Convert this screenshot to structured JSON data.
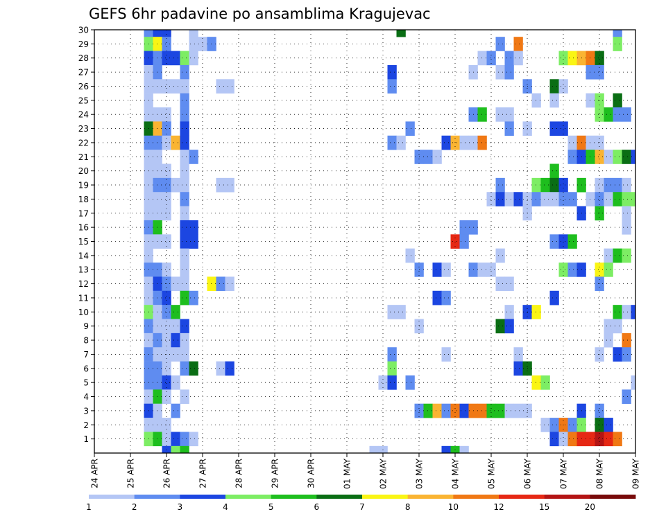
{
  "chart_data": {
    "type": "heatmap",
    "title": "GEFS 6hr padavine po ansamblima Kragujevac",
    "xlabel": "",
    "ylabel": "",
    "x_tick_labels": [
      "24 APR",
      "25 APR",
      "26 APR",
      "27 APR",
      "28 APR",
      "29 APR",
      "30 APR",
      "01 MAY",
      "02 MAY",
      "03 MAY",
      "04 MAY",
      "05 MAY",
      "06 MAY",
      "07 MAY",
      "08 MAY",
      "09 MAY"
    ],
    "y_tick_labels": [
      "1",
      "2",
      "3",
      "4",
      "5",
      "6",
      "7",
      "8",
      "9",
      "10",
      "11",
      "12",
      "13",
      "14",
      "15",
      "16",
      "17",
      "18",
      "19",
      "20",
      "21",
      "22",
      "23",
      "24",
      "25",
      "26",
      "27",
      "28",
      "29",
      "30"
    ],
    "y_members": [
      0,
      30
    ],
    "time_steps": 60,
    "grid": "dotted",
    "colorbar": {
      "levels": [
        "1",
        "2",
        "3",
        "4",
        "5",
        "6",
        "7",
        "8",
        "10",
        "12",
        "15",
        "20"
      ],
      "colors": [
        "#B4C6F5",
        "#5F8CF0",
        "#1C46E1",
        "#7DED64",
        "#1EBE1E",
        "#0A6E14",
        "#FAF514",
        "#FAB432",
        "#F07814",
        "#E62814",
        "#B41414",
        "#780A0A"
      ]
    },
    "cells": [
      [
        6,
        30,
        2
      ],
      [
        7,
        30,
        3
      ],
      [
        8,
        30,
        3
      ],
      [
        11,
        30,
        1
      ],
      [
        34,
        30,
        6
      ],
      [
        58,
        30,
        2
      ],
      [
        6,
        29,
        4
      ],
      [
        7,
        29,
        7
      ],
      [
        8,
        29,
        2
      ],
      [
        11,
        29,
        1
      ],
      [
        12,
        29,
        1
      ],
      [
        13,
        29,
        2
      ],
      [
        45,
        29,
        2
      ],
      [
        47,
        29,
        9
      ],
      [
        58,
        29,
        4
      ],
      [
        6,
        28,
        3
      ],
      [
        7,
        28,
        2
      ],
      [
        8,
        28,
        3
      ],
      [
        9,
        28,
        3
      ],
      [
        10,
        28,
        4
      ],
      [
        11,
        28,
        1
      ],
      [
        43,
        28,
        1
      ],
      [
        44,
        28,
        2
      ],
      [
        46,
        28,
        2
      ],
      [
        47,
        28,
        1
      ],
      [
        52,
        28,
        4
      ],
      [
        53,
        28,
        7
      ],
      [
        54,
        28,
        8
      ],
      [
        55,
        28,
        9
      ],
      [
        56,
        28,
        6
      ],
      [
        6,
        27,
        1
      ],
      [
        7,
        27,
        2
      ],
      [
        10,
        27,
        2
      ],
      [
        33,
        27,
        3
      ],
      [
        42,
        27,
        1
      ],
      [
        45,
        27,
        1
      ],
      [
        46,
        27,
        2
      ],
      [
        55,
        27,
        2
      ],
      [
        56,
        27,
        2
      ],
      [
        6,
        26,
        1
      ],
      [
        7,
        26,
        1
      ],
      [
        8,
        26,
        1
      ],
      [
        9,
        26,
        1
      ],
      [
        10,
        26,
        1
      ],
      [
        14,
        26,
        1
      ],
      [
        15,
        26,
        1
      ],
      [
        33,
        26,
        2
      ],
      [
        48,
        26,
        2
      ],
      [
        51,
        26,
        6
      ],
      [
        52,
        26,
        1
      ],
      [
        6,
        25,
        1
      ],
      [
        10,
        25,
        2
      ],
      [
        49,
        25,
        1
      ],
      [
        51,
        25,
        1
      ],
      [
        55,
        25,
        1
      ],
      [
        56,
        25,
        4
      ],
      [
        58,
        25,
        6
      ],
      [
        6,
        24,
        1
      ],
      [
        7,
        24,
        1
      ],
      [
        8,
        24,
        1
      ],
      [
        10,
        24,
        2
      ],
      [
        42,
        24,
        2
      ],
      [
        43,
        24,
        5
      ],
      [
        45,
        24,
        1
      ],
      [
        46,
        24,
        1
      ],
      [
        56,
        24,
        4
      ],
      [
        57,
        24,
        5
      ],
      [
        58,
        24,
        2
      ],
      [
        59,
        24,
        2
      ],
      [
        6,
        23,
        6
      ],
      [
        7,
        23,
        8
      ],
      [
        8,
        23,
        2
      ],
      [
        10,
        23,
        3
      ],
      [
        35,
        23,
        2
      ],
      [
        46,
        23,
        2
      ],
      [
        48,
        23,
        1
      ],
      [
        51,
        23,
        3
      ],
      [
        52,
        23,
        3
      ],
      [
        6,
        22,
        2
      ],
      [
        7,
        22,
        2
      ],
      [
        8,
        22,
        1
      ],
      [
        9,
        22,
        8
      ],
      [
        10,
        22,
        3
      ],
      [
        33,
        22,
        2
      ],
      [
        34,
        22,
        1
      ],
      [
        39,
        22,
        3
      ],
      [
        40,
        22,
        8
      ],
      [
        41,
        22,
        1
      ],
      [
        42,
        22,
        1
      ],
      [
        43,
        22,
        9
      ],
      [
        53,
        22,
        1
      ],
      [
        54,
        22,
        9
      ],
      [
        55,
        22,
        1
      ],
      [
        56,
        22,
        1
      ],
      [
        6,
        21,
        1
      ],
      [
        7,
        21,
        1
      ],
      [
        10,
        21,
        1
      ],
      [
        11,
        21,
        2
      ],
      [
        36,
        21,
        2
      ],
      [
        37,
        21,
        2
      ],
      [
        38,
        21,
        1
      ],
      [
        53,
        21,
        2
      ],
      [
        54,
        21,
        3
      ],
      [
        55,
        21,
        5
      ],
      [
        56,
        21,
        8
      ],
      [
        57,
        21,
        1
      ],
      [
        58,
        21,
        4
      ],
      [
        59,
        21,
        6
      ],
      [
        60,
        21,
        3
      ],
      [
        6,
        20,
        1
      ],
      [
        7,
        20,
        1
      ],
      [
        8,
        20,
        1
      ],
      [
        10,
        20,
        1
      ],
      [
        51,
        20,
        5
      ],
      [
        6,
        19,
        1
      ],
      [
        7,
        19,
        2
      ],
      [
        8,
        19,
        2
      ],
      [
        9,
        19,
        1
      ],
      [
        10,
        19,
        1
      ],
      [
        14,
        19,
        1
      ],
      [
        15,
        19,
        1
      ],
      [
        45,
        19,
        2
      ],
      [
        49,
        19,
        4
      ],
      [
        50,
        19,
        5
      ],
      [
        51,
        19,
        6
      ],
      [
        52,
        19,
        3
      ],
      [
        54,
        19,
        5
      ],
      [
        56,
        19,
        1
      ],
      [
        57,
        19,
        2
      ],
      [
        58,
        19,
        2
      ],
      [
        59,
        19,
        1
      ],
      [
        6,
        18,
        1
      ],
      [
        7,
        18,
        1
      ],
      [
        8,
        18,
        1
      ],
      [
        10,
        18,
        2
      ],
      [
        44,
        18,
        1
      ],
      [
        45,
        18,
        3
      ],
      [
        46,
        18,
        1
      ],
      [
        47,
        18,
        3
      ],
      [
        48,
        18,
        1
      ],
      [
        49,
        18,
        2
      ],
      [
        50,
        18,
        1
      ],
      [
        51,
        18,
        1
      ],
      [
        52,
        18,
        2
      ],
      [
        53,
        18,
        2
      ],
      [
        55,
        18,
        1
      ],
      [
        56,
        18,
        2
      ],
      [
        57,
        18,
        1
      ],
      [
        58,
        18,
        5
      ],
      [
        59,
        18,
        4
      ],
      [
        60,
        18,
        4
      ],
      [
        6,
        17,
        1
      ],
      [
        7,
        17,
        1
      ],
      [
        8,
        17,
        1
      ],
      [
        10,
        17,
        1
      ],
      [
        48,
        17,
        1
      ],
      [
        54,
        17,
        3
      ],
      [
        56,
        17,
        5
      ],
      [
        59,
        17,
        1
      ],
      [
        6,
        16,
        2
      ],
      [
        7,
        16,
        5
      ],
      [
        10,
        16,
        3
      ],
      [
        11,
        16,
        3
      ],
      [
        41,
        16,
        2
      ],
      [
        42,
        16,
        2
      ],
      [
        59,
        16,
        1
      ],
      [
        6,
        15,
        1
      ],
      [
        7,
        15,
        1
      ],
      [
        8,
        15,
        1
      ],
      [
        10,
        15,
        3
      ],
      [
        11,
        15,
        3
      ],
      [
        40,
        15,
        10
      ],
      [
        41,
        15,
        2
      ],
      [
        51,
        15,
        2
      ],
      [
        52,
        15,
        3
      ],
      [
        53,
        15,
        5
      ],
      [
        6,
        14,
        1
      ],
      [
        10,
        14,
        1
      ],
      [
        35,
        14,
        1
      ],
      [
        45,
        14,
        1
      ],
      [
        57,
        14,
        1
      ],
      [
        58,
        14,
        5
      ],
      [
        59,
        14,
        4
      ],
      [
        6,
        13,
        2
      ],
      [
        7,
        13,
        2
      ],
      [
        8,
        13,
        1
      ],
      [
        10,
        13,
        1
      ],
      [
        36,
        13,
        2
      ],
      [
        38,
        13,
        3
      ],
      [
        39,
        13,
        1
      ],
      [
        42,
        13,
        2
      ],
      [
        43,
        13,
        1
      ],
      [
        44,
        13,
        1
      ],
      [
        52,
        13,
        4
      ],
      [
        53,
        13,
        2
      ],
      [
        54,
        13,
        3
      ],
      [
        56,
        13,
        7
      ],
      [
        57,
        13,
        4
      ],
      [
        6,
        12,
        1
      ],
      [
        7,
        12,
        3
      ],
      [
        8,
        12,
        2
      ],
      [
        9,
        12,
        1
      ],
      [
        10,
        12,
        1
      ],
      [
        13,
        12,
        7
      ],
      [
        14,
        12,
        2
      ],
      [
        15,
        12,
        1
      ],
      [
        45,
        12,
        1
      ],
      [
        46,
        12,
        1
      ],
      [
        56,
        12,
        2
      ],
      [
        6,
        11,
        1
      ],
      [
        7,
        11,
        2
      ],
      [
        8,
        11,
        3
      ],
      [
        10,
        11,
        5
      ],
      [
        11,
        11,
        2
      ],
      [
        38,
        11,
        3
      ],
      [
        39,
        11,
        2
      ],
      [
        51,
        11,
        3
      ],
      [
        6,
        10,
        4
      ],
      [
        7,
        10,
        1
      ],
      [
        8,
        10,
        2
      ],
      [
        9,
        10,
        5
      ],
      [
        33,
        10,
        1
      ],
      [
        34,
        10,
        1
      ],
      [
        46,
        10,
        1
      ],
      [
        48,
        10,
        3
      ],
      [
        49,
        10,
        7
      ],
      [
        58,
        10,
        5
      ],
      [
        59,
        10,
        1
      ],
      [
        60,
        10,
        3
      ],
      [
        6,
        9,
        2
      ],
      [
        7,
        9,
        1
      ],
      [
        8,
        9,
        1
      ],
      [
        9,
        9,
        1
      ],
      [
        10,
        9,
        3
      ],
      [
        36,
        9,
        1
      ],
      [
        45,
        9,
        6
      ],
      [
        46,
        9,
        3
      ],
      [
        57,
        9,
        1
      ],
      [
        58,
        9,
        1
      ],
      [
        6,
        8,
        1
      ],
      [
        7,
        8,
        2
      ],
      [
        8,
        8,
        1
      ],
      [
        9,
        8,
        3
      ],
      [
        10,
        8,
        1
      ],
      [
        57,
        8,
        1
      ],
      [
        59,
        8,
        9
      ],
      [
        6,
        7,
        2
      ],
      [
        7,
        7,
        1
      ],
      [
        8,
        7,
        1
      ],
      [
        9,
        7,
        1
      ],
      [
        10,
        7,
        1
      ],
      [
        33,
        7,
        2
      ],
      [
        39,
        7,
        1
      ],
      [
        47,
        7,
        1
      ],
      [
        56,
        7,
        1
      ],
      [
        58,
        7,
        3
      ],
      [
        59,
        7,
        2
      ],
      [
        6,
        6,
        2
      ],
      [
        7,
        6,
        2
      ],
      [
        8,
        6,
        1
      ],
      [
        10,
        6,
        2
      ],
      [
        11,
        6,
        6
      ],
      [
        14,
        6,
        1
      ],
      [
        15,
        6,
        3
      ],
      [
        33,
        6,
        4
      ],
      [
        47,
        6,
        3
      ],
      [
        48,
        6,
        6
      ],
      [
        6,
        5,
        2
      ],
      [
        7,
        5,
        2
      ],
      [
        8,
        5,
        3
      ],
      [
        9,
        5,
        1
      ],
      [
        32,
        5,
        1
      ],
      [
        33,
        5,
        3
      ],
      [
        35,
        5,
        2
      ],
      [
        49,
        5,
        7
      ],
      [
        50,
        5,
        4
      ],
      [
        60,
        5,
        1
      ],
      [
        6,
        4,
        1
      ],
      [
        7,
        4,
        5
      ],
      [
        8,
        4,
        1
      ],
      [
        10,
        4,
        1
      ],
      [
        59,
        4,
        2
      ],
      [
        6,
        3,
        3
      ],
      [
        7,
        3,
        1
      ],
      [
        9,
        3,
        2
      ],
      [
        36,
        3,
        2
      ],
      [
        37,
        3,
        5
      ],
      [
        38,
        3,
        8
      ],
      [
        39,
        3,
        2
      ],
      [
        40,
        3,
        9
      ],
      [
        41,
        3,
        3
      ],
      [
        42,
        3,
        9
      ],
      [
        43,
        3,
        9
      ],
      [
        44,
        3,
        5
      ],
      [
        45,
        3,
        5
      ],
      [
        46,
        3,
        1
      ],
      [
        47,
        3,
        1
      ],
      [
        48,
        3,
        1
      ],
      [
        54,
        3,
        3
      ],
      [
        56,
        3,
        2
      ],
      [
        6,
        2,
        1
      ],
      [
        7,
        2,
        1
      ],
      [
        8,
        2,
        1
      ],
      [
        50,
        2,
        1
      ],
      [
        51,
        2,
        2
      ],
      [
        52,
        2,
        9
      ],
      [
        53,
        2,
        2
      ],
      [
        54,
        2,
        4
      ],
      [
        56,
        2,
        6
      ],
      [
        57,
        2,
        3
      ],
      [
        6,
        1,
        4
      ],
      [
        7,
        1,
        5
      ],
      [
        8,
        1,
        1
      ],
      [
        9,
        1,
        3
      ],
      [
        10,
        1,
        2
      ],
      [
        11,
        1,
        1
      ],
      [
        51,
        1,
        3
      ],
      [
        52,
        1,
        1
      ],
      [
        53,
        1,
        9
      ],
      [
        54,
        1,
        10
      ],
      [
        55,
        1,
        10
      ],
      [
        56,
        1,
        11
      ],
      [
        57,
        1,
        10
      ],
      [
        58,
        1,
        9
      ],
      [
        8,
        0,
        3
      ],
      [
        9,
        0,
        4
      ],
      [
        10,
        0,
        5
      ],
      [
        31,
        0,
        1
      ],
      [
        32,
        0,
        1
      ],
      [
        39,
        0,
        3
      ],
      [
        40,
        0,
        5
      ],
      [
        41,
        0,
        1
      ]
    ]
  }
}
